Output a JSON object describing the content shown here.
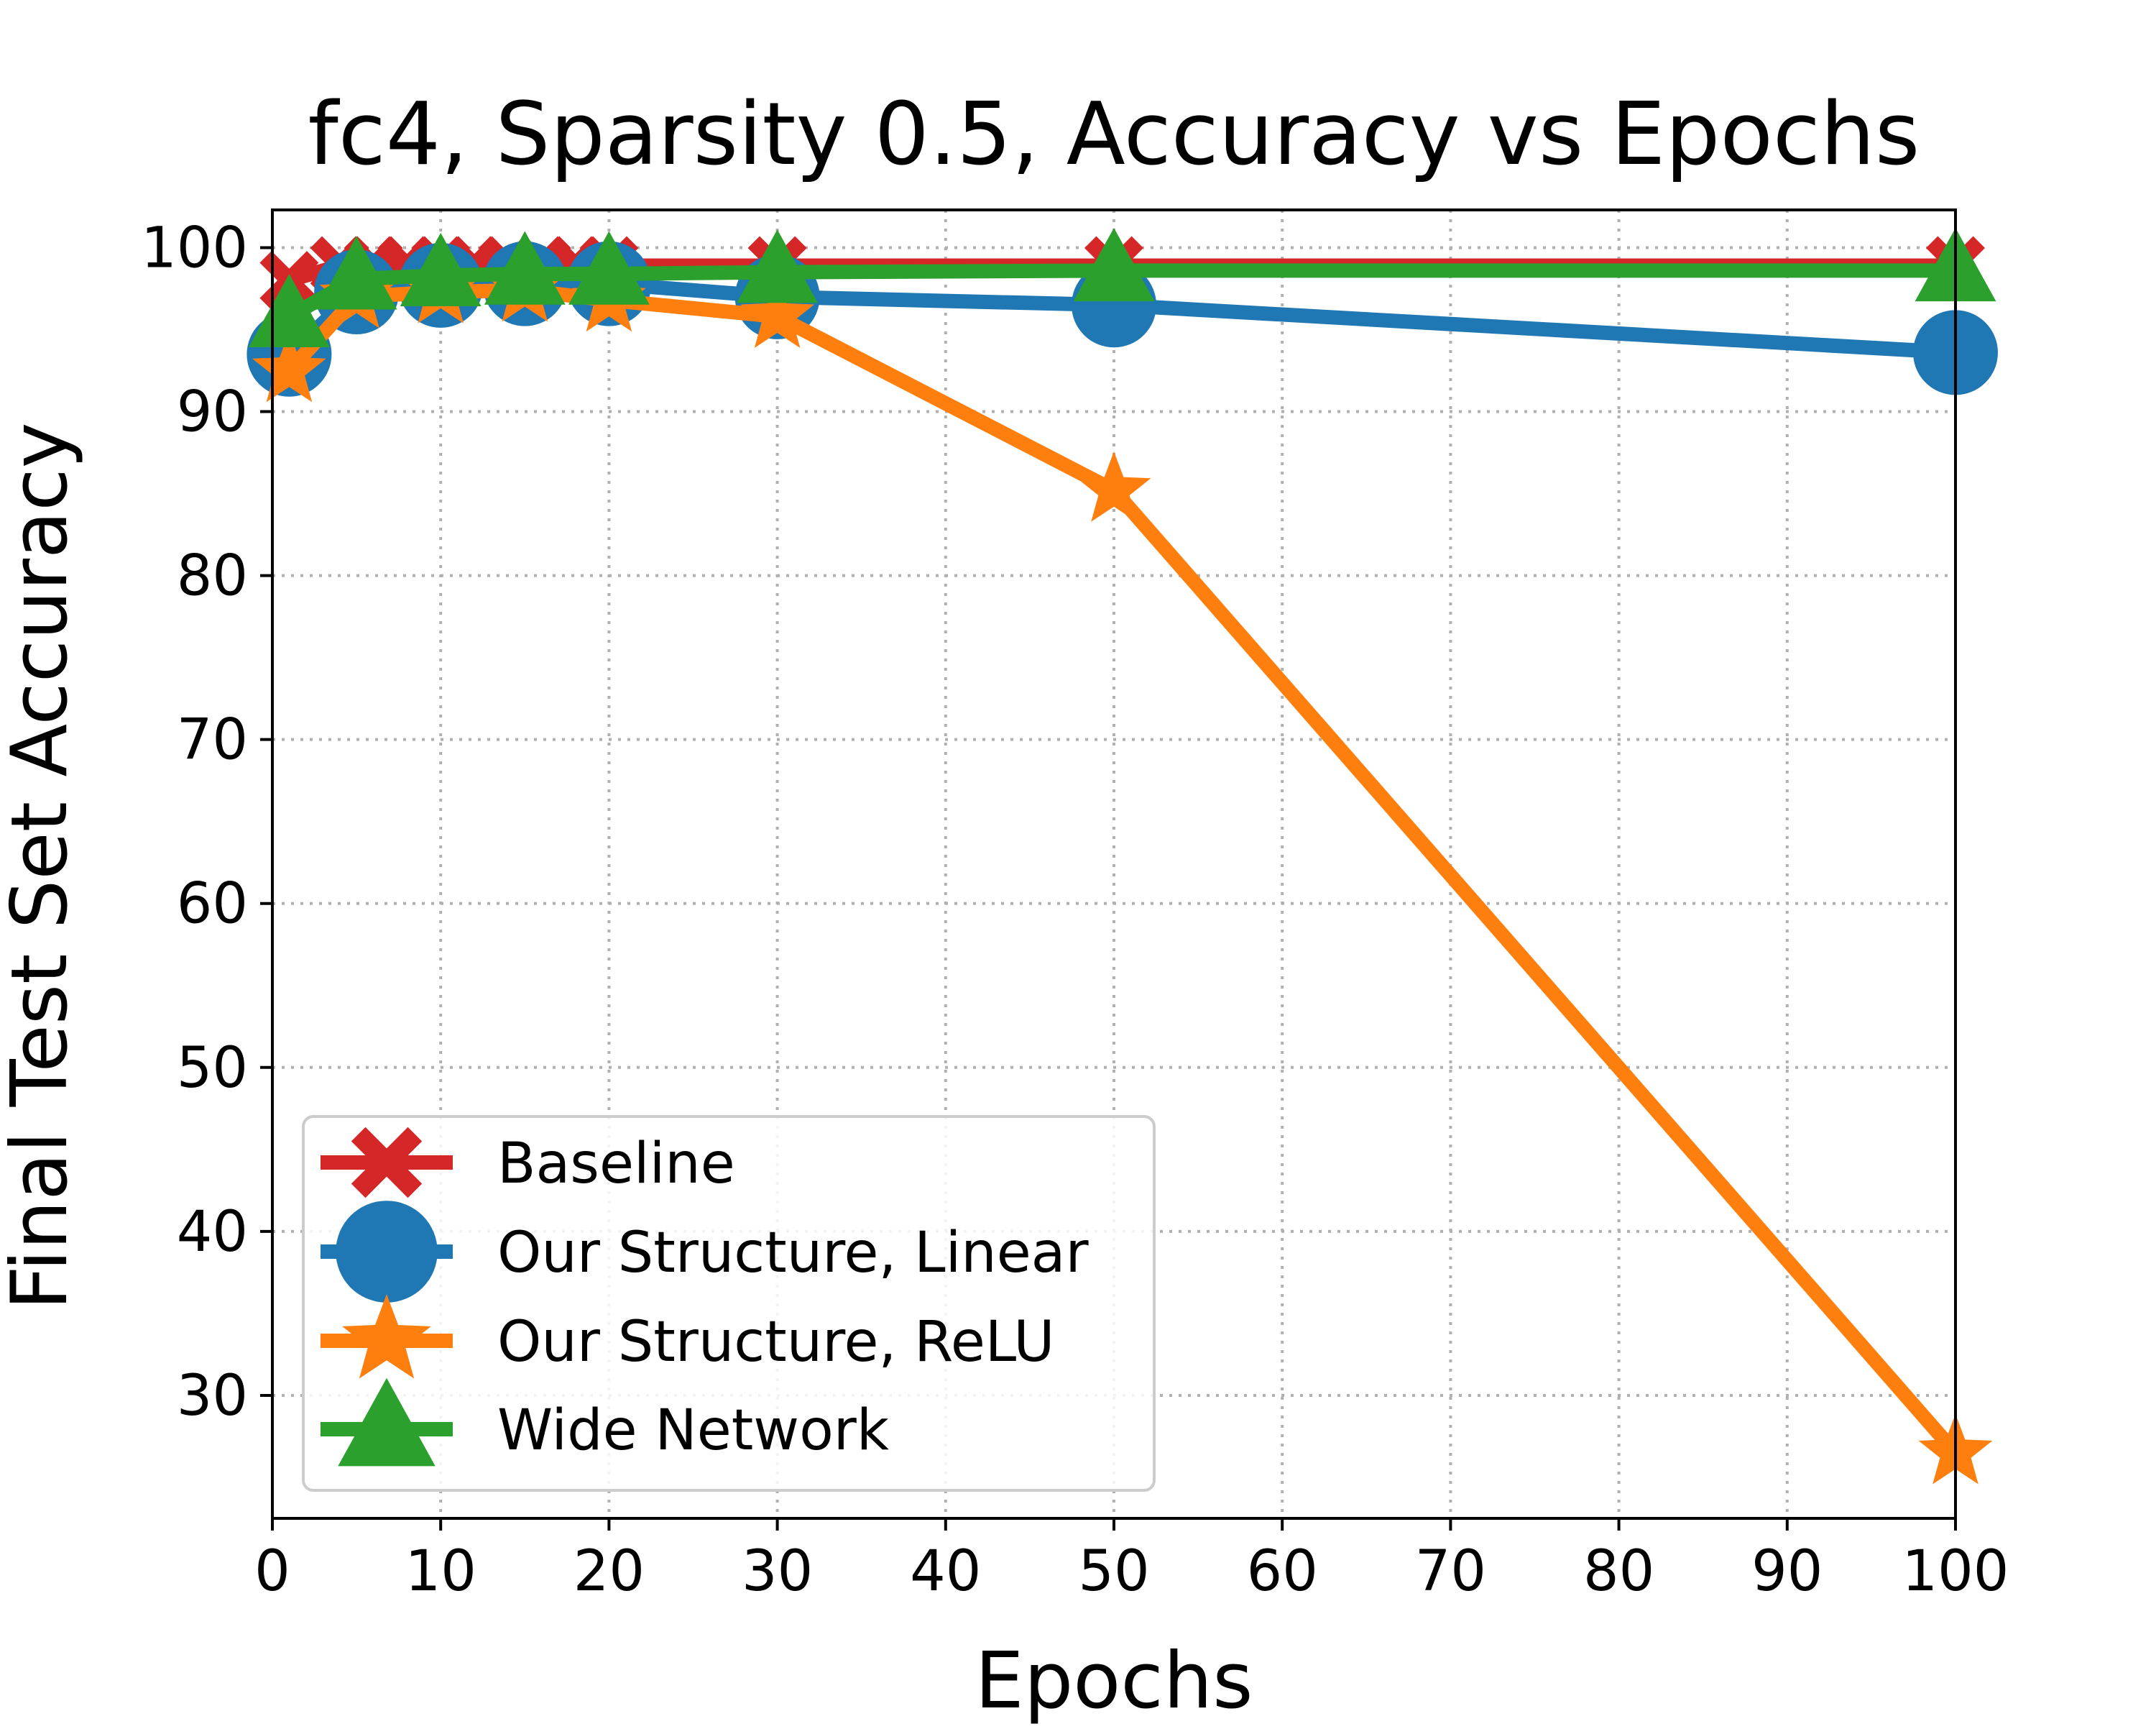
{
  "chart_data": {
    "type": "line",
    "title": "fc4, Sparsity 0.5, Accuracy vs Epochs",
    "xlabel": "Epochs",
    "ylabel": "Final Test Set Accuracy",
    "xlim": [
      0,
      100
    ],
    "ylim": [
      22.5,
      102.3
    ],
    "xticks": [
      0,
      10,
      20,
      30,
      40,
      50,
      60,
      70,
      80,
      90,
      100
    ],
    "yticks": [
      30,
      40,
      50,
      60,
      70,
      80,
      90,
      100
    ],
    "grid": true,
    "legend_position": "lower-left",
    "series": [
      {
        "name": "Baseline",
        "color": "#d62728",
        "marker": "X",
        "x": [
          1,
          4,
          6,
          8,
          10,
          12,
          14,
          16,
          18,
          20,
          30,
          50,
          100
        ],
        "y": [
          98.0,
          98.9,
          98.9,
          98.9,
          98.9,
          98.9,
          98.9,
          98.9,
          98.9,
          98.9,
          98.9,
          98.9,
          98.9
        ]
      },
      {
        "name": "Our Structure, Linear",
        "color": "#1f77b4",
        "marker": "circle",
        "x": [
          1,
          5,
          10,
          15,
          20,
          30,
          50,
          100
        ],
        "y": [
          93.5,
          97.3,
          97.7,
          97.8,
          97.8,
          97.0,
          96.5,
          93.6
        ]
      },
      {
        "name": "Our Structure, ReLU",
        "color": "#ff7f0e",
        "marker": "star",
        "x": [
          1,
          5,
          10,
          15,
          20,
          30,
          50,
          100
        ],
        "y": [
          92.5,
          97.0,
          97.3,
          97.4,
          96.8,
          95.8,
          85.2,
          26.5
        ]
      },
      {
        "name": "Wide Network",
        "color": "#2ca02c",
        "marker": "triangle",
        "x": [
          1,
          5,
          10,
          15,
          20,
          30,
          50,
          100
        ],
        "y": [
          95.8,
          98.1,
          98.3,
          98.4,
          98.4,
          98.5,
          98.6,
          98.6
        ]
      }
    ]
  }
}
